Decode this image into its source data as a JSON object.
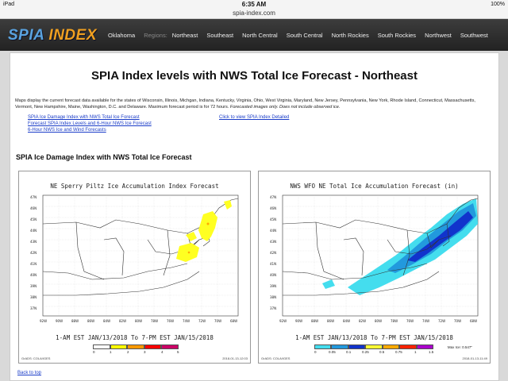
{
  "statusbar": {
    "device": "iPad",
    "time": "6:35 AM",
    "battery": "100%"
  },
  "url": "spia-index.com",
  "nav": {
    "logo_a": "SPIA",
    "logo_b": "INDEX",
    "items": [
      "Oklahoma",
      "Regions:",
      "Northeast",
      "Southeast",
      "North Central",
      "South Central",
      "North Rockies",
      "South Rockies",
      "Northwest",
      "Southwest"
    ]
  },
  "page": {
    "title": "SPIA Index levels with NWS Total Ice Forecast - Northeast",
    "description": "Maps display the current forecast data available for the states of Wisconsin, Illinois, Michgan, Indiana, Kentucky, Virginia, Ohio, West Virginia, Maryland, New Jersey, Pennsylvania, New York, Rhode Island, Connecticut, Massachusetts, Vermont, New Hampshire, Maine, Washington, D.C. and Delaware. Maximum forecast period is for 72 hours.",
    "description_note": "Forecasted images only. Does not include observed ice.",
    "links": [
      "SPIA Ice Damage Index with NWS Total Ice Forecast",
      "Forecast SPIA Index Levels and 6-Hour NWS Ice Forecast",
      "6-Hour NWS Ice and Wind Forecasts"
    ],
    "link_right": "Click to view SPIA Index Detailed",
    "section_title": "SPIA Ice Damage Index with NWS Total Ice Forecast",
    "back_to_top": "Back to top"
  },
  "map1": {
    "title": "NE Sperry Piltz Ice Accumulation Index Forecast",
    "date": "1-AM EST JAN/13/2018 To 7-PM EST JAN/15/2018",
    "legend_labels": [
      "0",
      "1",
      "2",
      "3",
      "4",
      "5"
    ],
    "legend_colors": [
      "#ffffff",
      "#ffff00",
      "#ff9900",
      "#ff0000",
      "#cc0066",
      "#660099"
    ],
    "footer_left": "GrADS: COLA/IGES",
    "footer_right": "2018-01-13-12:03"
  },
  "map2": {
    "title": "NWS WFO NE Total Ice Accumulation Forecast (in)",
    "date": "1-AM EST JAN/13/2018 To 7-PM EST JAN/15/2018",
    "legend_labels": [
      "0",
      "0.05",
      "0.1",
      "0.25",
      "0.5",
      "0.75",
      "1",
      "1.5"
    ],
    "legend_colors": [
      "#ffffff",
      "#44ddee",
      "#2299dd",
      "#1133cc",
      "#ffff33",
      "#ffaa00",
      "#ff2200",
      "#aa00cc"
    ],
    "max_label": "Max Ice: 0.547\"",
    "footer_left": "GrADS: COLA/IGES",
    "footer_right": "2018-01-13-11:49"
  },
  "map_axis": {
    "lat_labels": [
      "47N",
      "46N",
      "45N",
      "44N",
      "43N",
      "42N",
      "41N",
      "40N",
      "39N",
      "38N",
      "37N"
    ],
    "lon_labels": [
      "92W",
      "90W",
      "88W",
      "86W",
      "84W",
      "82W",
      "80W",
      "78W",
      "76W",
      "74W",
      "72W",
      "70W",
      "68W"
    ]
  }
}
